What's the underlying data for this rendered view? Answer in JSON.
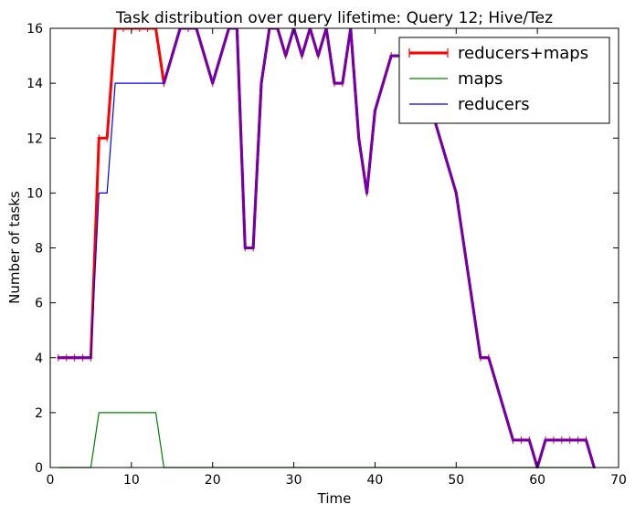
{
  "chart_data": {
    "type": "line",
    "title": "Task distribution over query lifetime: Query 12; Hive/Tez",
    "xlabel": "Time",
    "ylabel": "Number of tasks",
    "xlim": [
      0,
      70
    ],
    "ylim": [
      0,
      16
    ],
    "xticks": [
      "0",
      "10",
      "20",
      "30",
      "40",
      "50",
      "60",
      "70"
    ],
    "yticks": [
      "0",
      "2",
      "4",
      "6",
      "8",
      "10",
      "12",
      "14",
      "16"
    ],
    "grid": false,
    "legend_position": "top-right",
    "series": [
      {
        "name": "reducers+maps",
        "color": "#ff0000",
        "marker": "vertical-tick",
        "x": [
          1,
          2,
          3,
          4,
          5,
          6,
          7,
          8,
          9,
          10,
          11,
          12,
          13,
          14,
          15,
          16,
          17,
          18,
          19,
          20,
          21,
          22,
          23,
          24,
          25,
          26,
          27,
          28,
          29,
          30,
          31,
          32,
          33,
          34,
          35,
          36,
          37,
          38,
          39,
          40,
          41,
          42,
          43,
          44,
          45,
          46,
          47,
          48,
          49,
          50,
          51,
          52,
          53,
          54,
          55,
          56,
          57,
          58,
          59,
          60,
          61,
          62,
          63,
          64,
          65,
          66,
          67
        ],
        "y": [
          4,
          4,
          4,
          4,
          4,
          12,
          12,
          16,
          16,
          16,
          16,
          16,
          16,
          14,
          15,
          16,
          16,
          16,
          15,
          14,
          15,
          16,
          16,
          8,
          8,
          14,
          16,
          16,
          15,
          16,
          15,
          16,
          15,
          16,
          14,
          14,
          16,
          12,
          10,
          13,
          14,
          15,
          15,
          15,
          15,
          14,
          13,
          12,
          11,
          10,
          8,
          6,
          4,
          4,
          3,
          2,
          1,
          1,
          1,
          0,
          1,
          1,
          1,
          1,
          1,
          1,
          0
        ]
      },
      {
        "name": "maps",
        "color": "#008000",
        "x": [
          1,
          2,
          3,
          4,
          5,
          6,
          7,
          8,
          9,
          10,
          11,
          12,
          13,
          14,
          15,
          16,
          17,
          18,
          19,
          20,
          21,
          22,
          23,
          24,
          25,
          26,
          27,
          28,
          29,
          30,
          31,
          32,
          33,
          34,
          35,
          36,
          37,
          38,
          39,
          40,
          41,
          42,
          43,
          44,
          45,
          46,
          47,
          48,
          49,
          50,
          51,
          52,
          53,
          54,
          55,
          56,
          57,
          58,
          59,
          60,
          61,
          62,
          63,
          64,
          65,
          66,
          67
        ],
        "y": [
          0,
          0,
          0,
          0,
          0,
          2,
          2,
          2,
          2,
          2,
          2,
          2,
          2,
          0,
          0,
          0,
          0,
          0,
          0,
          0,
          0,
          0,
          0,
          0,
          0,
          0,
          0,
          0,
          0,
          0,
          0,
          0,
          0,
          0,
          0,
          0,
          0,
          0,
          0,
          0,
          0,
          0,
          0,
          0,
          0,
          0,
          0,
          0,
          0,
          0,
          0,
          0,
          0,
          0,
          0,
          0,
          0,
          0,
          0,
          0,
          0,
          0,
          0,
          0,
          0,
          0,
          0
        ]
      },
      {
        "name": "reducers",
        "color": "#0000ff",
        "x": [
          1,
          2,
          3,
          4,
          5,
          6,
          7,
          8,
          9,
          10,
          11,
          12,
          13,
          14,
          15,
          16,
          17,
          18,
          19,
          20,
          21,
          22,
          23,
          24,
          25,
          26,
          27,
          28,
          29,
          30,
          31,
          32,
          33,
          34,
          35,
          36,
          37,
          38,
          39,
          40,
          41,
          42,
          43,
          44,
          45,
          46,
          47,
          48,
          49,
          50,
          51,
          52,
          53,
          54,
          55,
          56,
          57,
          58,
          59,
          60,
          61,
          62,
          63,
          64,
          65,
          66,
          67
        ],
        "y": [
          4,
          4,
          4,
          4,
          4,
          10,
          10,
          14,
          14,
          14,
          14,
          14,
          14,
          14,
          15,
          16,
          16,
          16,
          15,
          14,
          15,
          16,
          16,
          8,
          8,
          14,
          16,
          16,
          15,
          16,
          15,
          16,
          15,
          16,
          14,
          14,
          16,
          12,
          10,
          13,
          14,
          15,
          15,
          15,
          15,
          14,
          13,
          12,
          11,
          10,
          8,
          6,
          4,
          4,
          3,
          2,
          1,
          1,
          1,
          0,
          1,
          1,
          1,
          1,
          1,
          1,
          0
        ]
      }
    ]
  }
}
